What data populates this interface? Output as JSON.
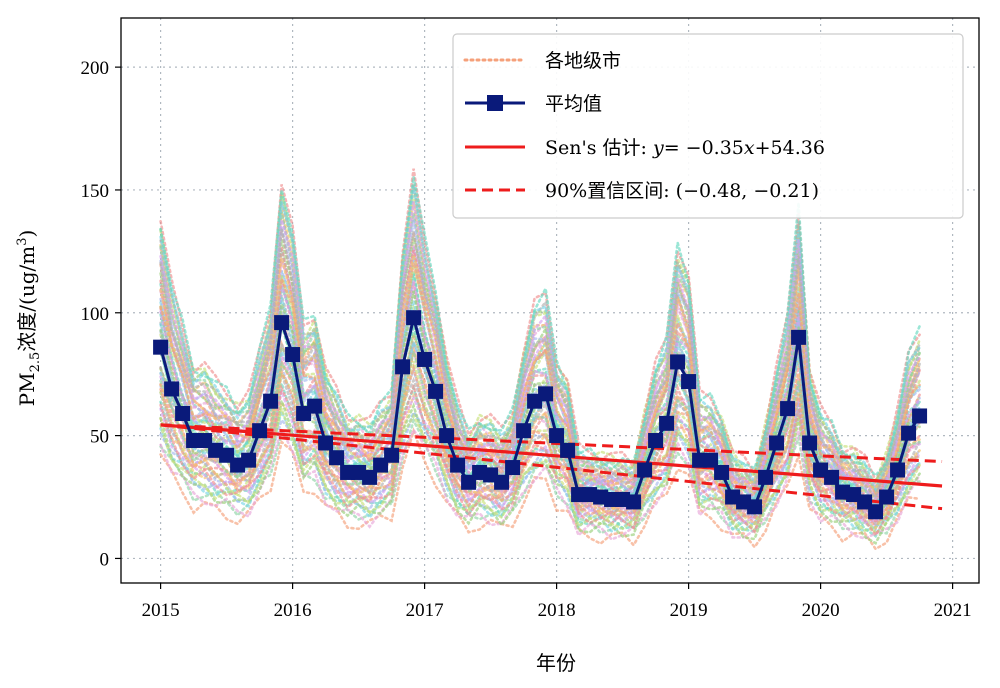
{
  "chart_data": {
    "type": "line",
    "xlabel": "年份",
    "ylabel_main": "PM",
    "ylabel_sub": "2.5",
    "ylabel_rest": "浓度/(ug/m",
    "ylabel_sup": "3",
    "ylabel_close": ")",
    "xlim": [
      2014.7,
      2021.2
    ],
    "ylim": [
      -10,
      220
    ],
    "xticks": [
      2015,
      2016,
      2017,
      2018,
      2019,
      2020,
      2021
    ],
    "yticks": [
      0,
      50,
      100,
      150,
      200
    ],
    "grid": true,
    "legend_position": "top-right",
    "legend": [
      {
        "label": "各地级市",
        "style": "dotted",
        "color": "#f5a07a"
      },
      {
        "label": "平均值",
        "style": "line-square",
        "color": "#0a1a7a"
      },
      {
        "label_prefix": "Sen's 估计: ",
        "label_var": "y",
        "label_eq": "= −0.35",
        "label_x": "x",
        "label_tail": "+54.36",
        "style": "solid",
        "color": "#ee1c1c"
      },
      {
        "label": "90%置信区间: (−0.48, −0.21)",
        "style": "dashed",
        "color": "#ee1c1c"
      }
    ],
    "series": [
      {
        "name": "平均值",
        "x_start": 2015.0,
        "x_step": 0.08333,
        "values": [
          86,
          69,
          59,
          48,
          48,
          44,
          42,
          38,
          40,
          52,
          64,
          96,
          83,
          59,
          62,
          47,
          41,
          35,
          35,
          33,
          38,
          42,
          78,
          98,
          81,
          68,
          50,
          38,
          31,
          35,
          34,
          31,
          37,
          52,
          64,
          67,
          50,
          44,
          26,
          26,
          25,
          24,
          24,
          23,
          36,
          48,
          55,
          80,
          72,
          40,
          40,
          35,
          25,
          23,
          21,
          33,
          47,
          61,
          90,
          47,
          36,
          33,
          27,
          26,
          23,
          19,
          25,
          36,
          51,
          58
        ]
      }
    ],
    "trend": {
      "slope": -0.35,
      "intercept": 54.36,
      "ci_low": -0.48,
      "ci_high": -0.21,
      "x_start": 2015.0,
      "x_end": 2020.92
    },
    "color_palette": [
      "#f5a07a",
      "#8fd4a6",
      "#a6b8ee",
      "#e8a6d8",
      "#c8e07a",
      "#f5c36b",
      "#7ad6e8",
      "#d5a0f0",
      "#9ad07a",
      "#f08f8f",
      "#b0b0b0",
      "#66d9c0"
    ]
  }
}
